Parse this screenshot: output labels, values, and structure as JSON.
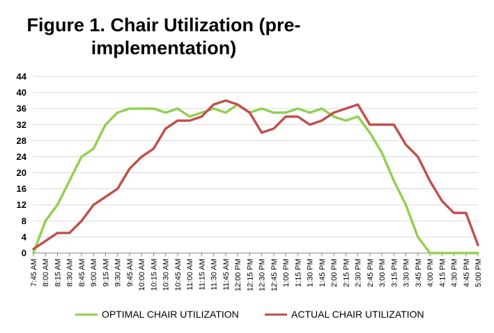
{
  "chart_data": {
    "type": "line",
    "title_line1": "Figure 1.  Chair Utilization (pre-",
    "title_line2": "implementation)",
    "xlabel": "",
    "ylabel": "",
    "ylim": [
      0,
      44
    ],
    "yticks": [
      0,
      4,
      8,
      12,
      16,
      20,
      24,
      28,
      32,
      36,
      40,
      44
    ],
    "grid": true,
    "legend_position": "bottom",
    "categories": [
      "7:45 AM",
      "8:00 AM",
      "8:15 AM",
      "8:30 AM",
      "8:45 AM",
      "9:00 AM",
      "9:15 AM",
      "9:30 AM",
      "9:45 AM",
      "10:00 AM",
      "10:15 AM",
      "10:30 AM",
      "10:45 AM",
      "11:00 AM",
      "11:15 AM",
      "11:30 AM",
      "11:45 AM",
      "12:00 PM",
      "12:15 PM",
      "12:30 PM",
      "12:45 PM",
      "1:00 PM",
      "1:15 PM",
      "1:30 PM",
      "1:45 PM",
      "2:00 PM",
      "2:15 PM",
      "2:30 PM",
      "2:45 PM",
      "3:00 PM",
      "3:15 PM",
      "3:30 PM",
      "3:45 PM",
      "4:00 PM",
      "4:15 PM",
      "4:30 PM",
      "4:45 PM",
      "5:00 PM"
    ],
    "series": [
      {
        "name": "OPTIMAL CHAIR UTILIZATION",
        "color": "#92d050",
        "values": [
          0,
          8,
          12,
          18,
          24,
          26,
          32,
          35,
          36,
          36,
          36,
          35,
          36,
          34,
          35,
          36,
          35,
          37,
          35,
          36,
          35,
          35,
          36,
          35,
          36,
          34,
          33,
          34,
          30,
          25,
          18,
          12,
          4,
          0,
          0,
          0,
          0,
          0
        ]
      },
      {
        "name": "ACTUAL CHAIR UTILIZATION",
        "color": "#c0504d",
        "values": [
          1,
          3,
          5,
          5,
          8,
          12,
          14,
          16,
          21,
          24,
          26,
          31,
          33,
          33,
          34,
          37,
          38,
          37,
          35,
          30,
          31,
          34,
          34,
          32,
          33,
          35,
          36,
          37,
          32,
          32,
          32,
          27,
          24,
          18,
          13,
          10,
          10,
          2
        ]
      }
    ]
  }
}
